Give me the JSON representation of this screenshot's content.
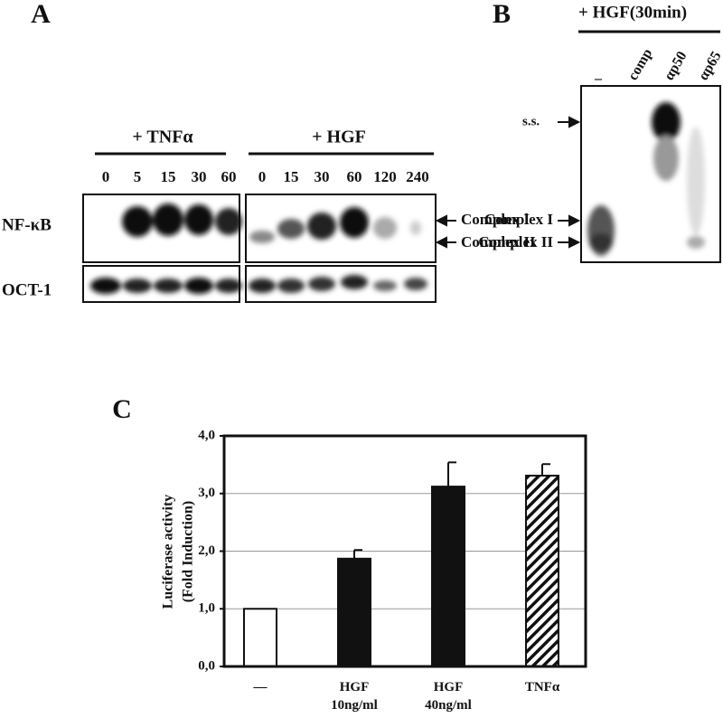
{
  "panels": {
    "a": "A",
    "b": "B",
    "c": "C"
  },
  "panel_a": {
    "tnf_header": "+ TNFα",
    "hgf_header": "+ HGF",
    "tnf_lanes": [
      "0",
      "5",
      "15",
      "30",
      "60"
    ],
    "hgf_lanes": [
      "0",
      "15",
      "30",
      "60",
      "120",
      "240"
    ],
    "rows": [
      "NF-κB",
      "OCT-1"
    ],
    "arrows": [
      "Complex I",
      "Complex II"
    ]
  },
  "panel_b": {
    "header": "+ HGF(30min)",
    "lanes": [
      "–",
      "comp",
      "αp50",
      "αp65"
    ],
    "ss": "s.s.",
    "arrows": [
      "Complex I",
      "Complex II"
    ]
  },
  "chart_data": {
    "type": "bar",
    "ylabel": [
      "Luciferase activity",
      "(Fold Induction)"
    ],
    "categories": [
      "—",
      "HGF 10ng/ml",
      "HGF 40ng/ml",
      "TNFα"
    ],
    "values": [
      1.0,
      1.87,
      3.12,
      3.31
    ],
    "errors": [
      null,
      0.15,
      0.42,
      0.2
    ],
    "fills": [
      "white",
      "black",
      "black",
      "hatched"
    ],
    "ylim": [
      0,
      4
    ],
    "yticks": [
      {
        "value": 0,
        "label": "0,0"
      },
      {
        "value": 1,
        "label": "1,0"
      },
      {
        "value": 2,
        "label": "2,0"
      },
      {
        "value": 3,
        "label": "3,0"
      },
      {
        "value": 4,
        "label": "4,0"
      }
    ],
    "grid": true
  }
}
